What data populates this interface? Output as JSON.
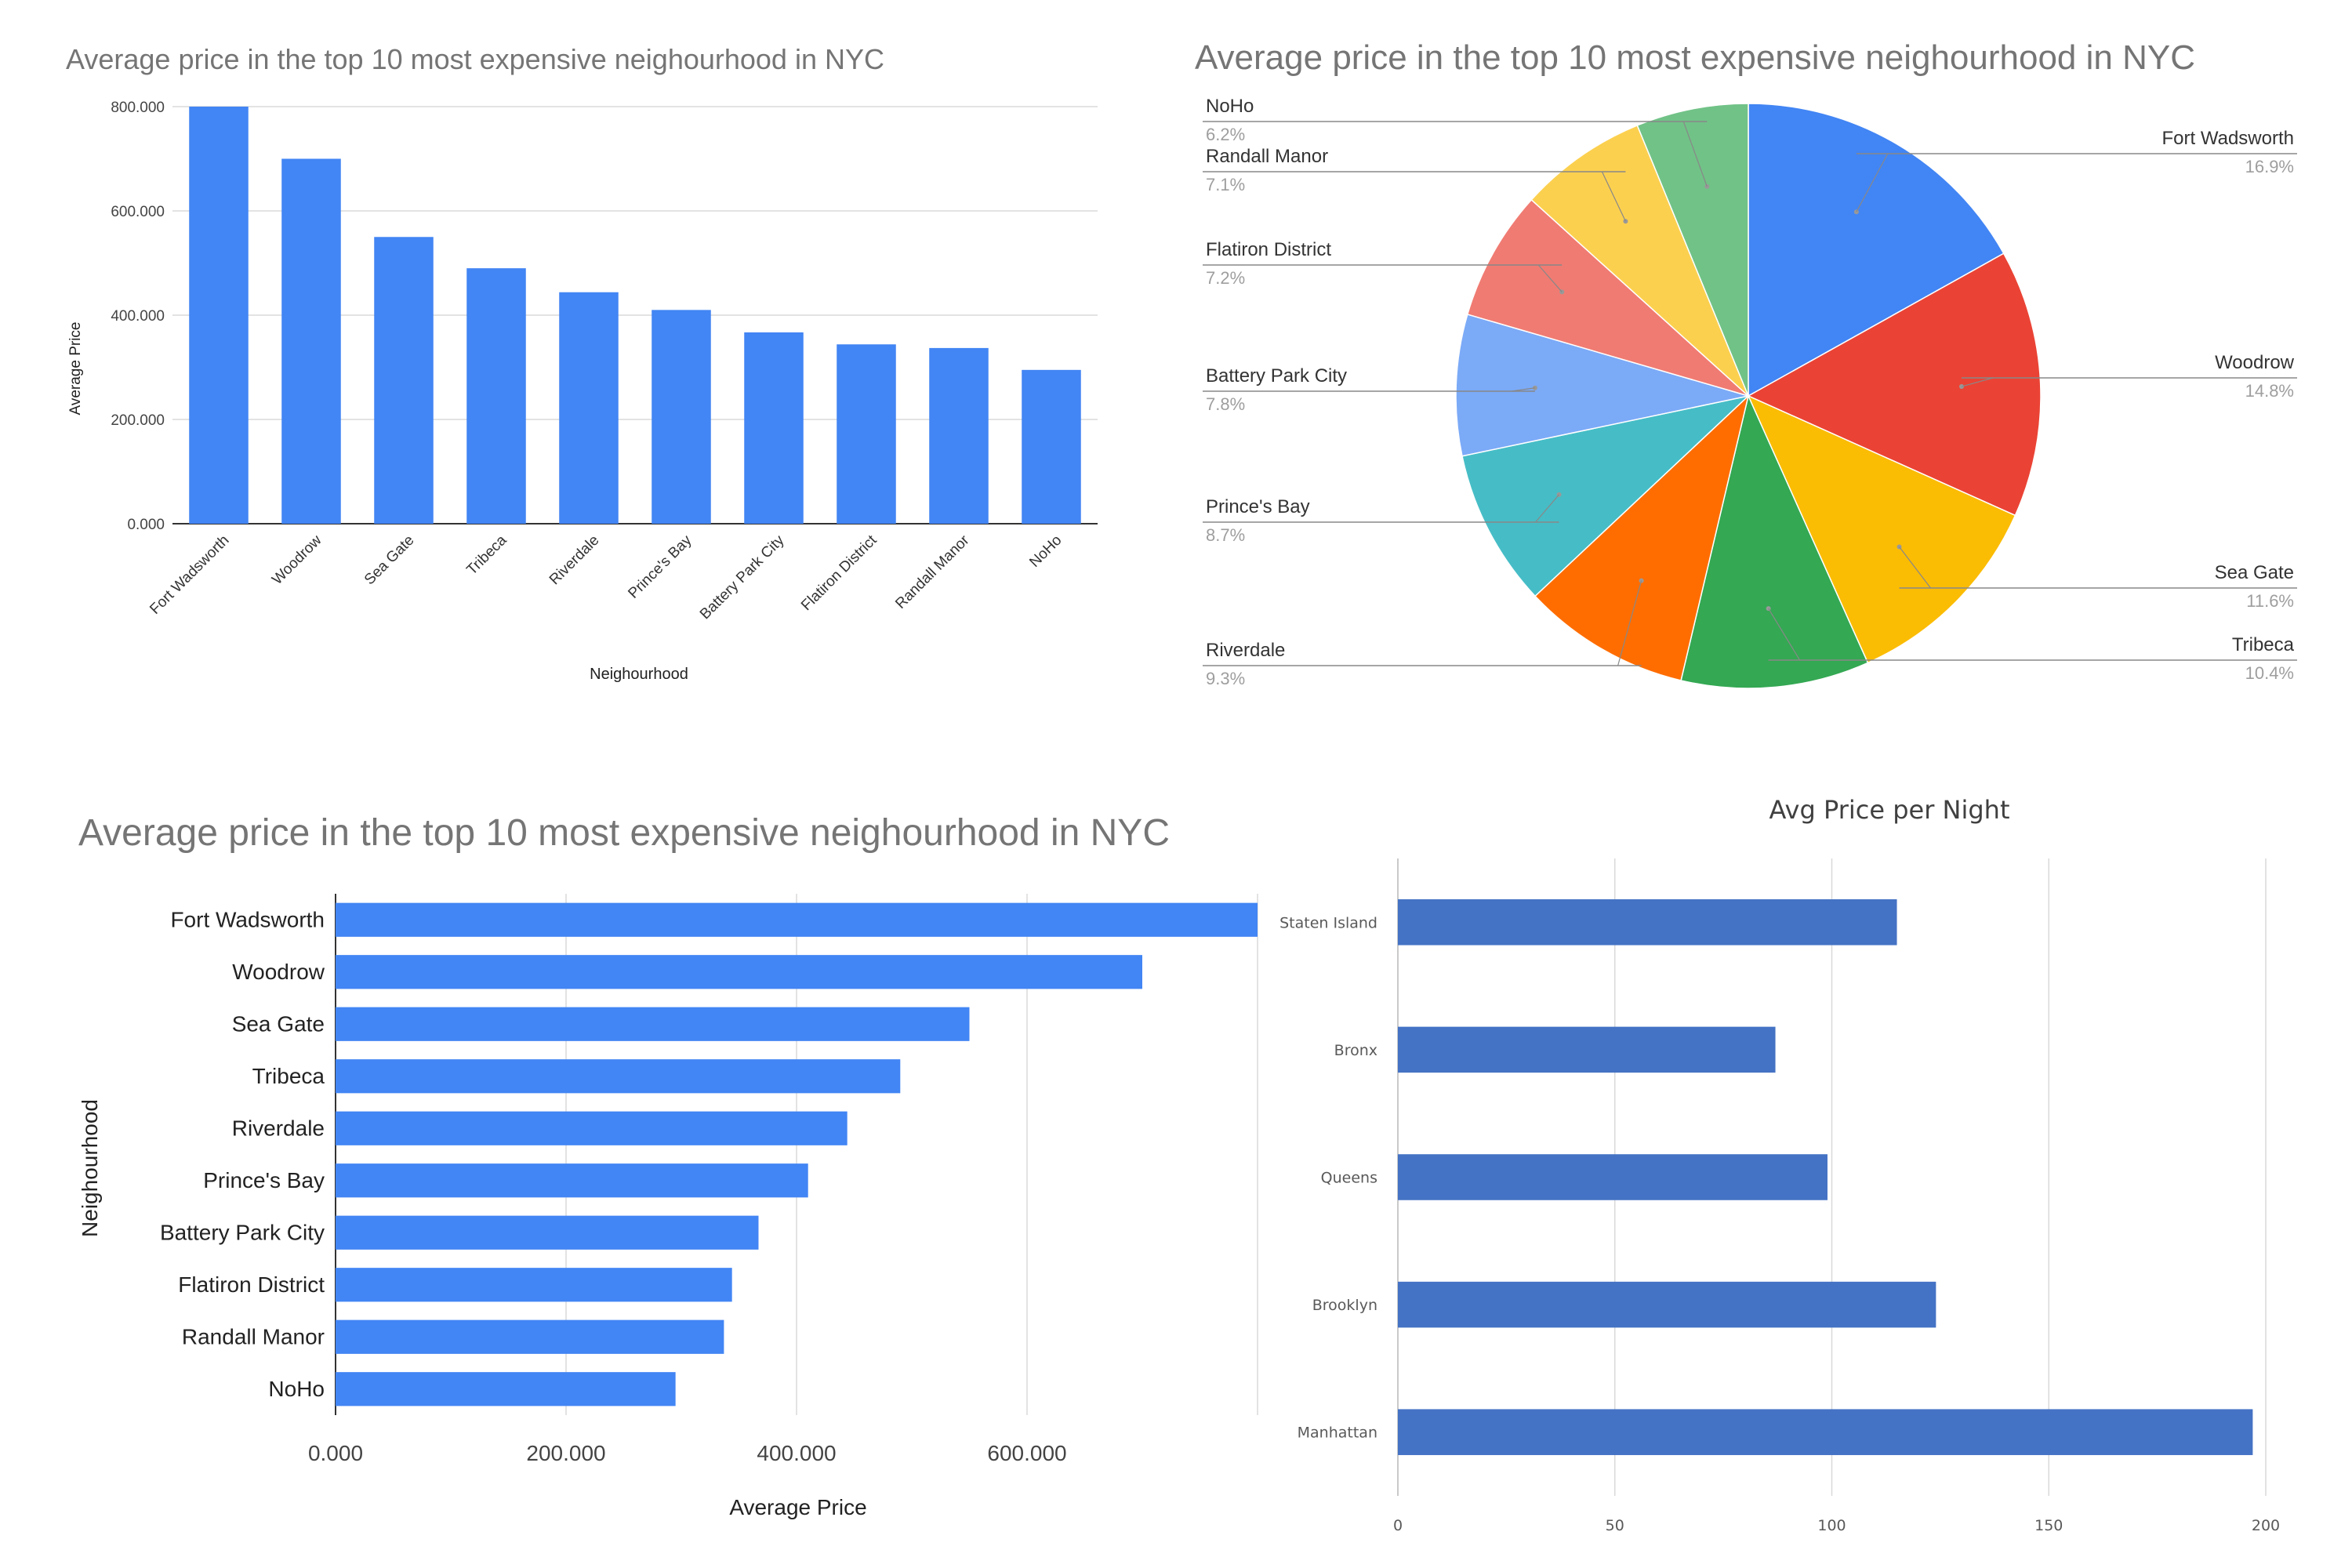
{
  "chart_data": [
    {
      "type": "bar",
      "title": "Average price in the top 10 most expensive neighourhood in NYC",
      "xlabel": "Neighourhood",
      "ylabel": "Average Price",
      "categories": [
        "Fort Wadsworth",
        "Woodrow",
        "Sea Gate",
        "Tribeca",
        "Riverdale",
        "Prince's Bay",
        "Battery Park City",
        "Flatiron District",
        "Randall Manor",
        "NoHo"
      ],
      "values": [
        800,
        700,
        550,
        490,
        444,
        410,
        367,
        344,
        337,
        295
      ],
      "ylim": [
        0,
        800
      ],
      "ytick_labels": [
        "0.000",
        "200.000",
        "400.000",
        "600.000",
        "800.000"
      ],
      "grid": true,
      "color": "#4285F4"
    },
    {
      "type": "pie",
      "title": "Average price in the top 10 most expensive neighourhood in NYC",
      "categories": [
        "Fort Wadsworth",
        "Woodrow",
        "Sea Gate",
        "Tribeca",
        "Riverdale",
        "Prince's Bay",
        "Battery Park City",
        "Flatiron District",
        "Randall Manor",
        "NoHo"
      ],
      "values": [
        16.9,
        14.8,
        11.6,
        10.4,
        9.3,
        8.7,
        7.8,
        7.2,
        7.1,
        6.2
      ],
      "value_labels": [
        "16.9%",
        "14.8%",
        "11.6%",
        "10.4%",
        "9.3%",
        "8.7%",
        "7.8%",
        "7.2%",
        "7.1%",
        "6.2%"
      ],
      "colors": [
        "#4285F4",
        "#EA4335",
        "#FBBC04",
        "#34A853",
        "#FF6D01",
        "#46BDC6",
        "#7BAAF7",
        "#F07B72",
        "#FCD04F",
        "#71C287"
      ]
    },
    {
      "type": "bar",
      "orientation": "horizontal",
      "title": "Average price in the top 10 most expensive neighourhood in NYC",
      "xlabel": "Average Price",
      "ylabel": "Neighourhood",
      "categories": [
        "Fort Wadsworth",
        "Woodrow",
        "Sea Gate",
        "Tribeca",
        "Riverdale",
        "Prince's Bay",
        "Battery Park City",
        "Flatiron District",
        "Randall Manor",
        "NoHo"
      ],
      "values": [
        800,
        700,
        550,
        490,
        444,
        410,
        367,
        344,
        337,
        295
      ],
      "xlim": [
        0,
        800
      ],
      "xtick_labels": [
        "0.000",
        "200.000",
        "400.000",
        "600.000"
      ],
      "grid": true,
      "color": "#4285F4"
    },
    {
      "type": "bar",
      "orientation": "horizontal",
      "title": "Avg Price per Night",
      "xlabel": "",
      "ylabel": "",
      "categories": [
        "Staten Island",
        "Bronx",
        "Queens",
        "Brooklyn",
        "Manhattan"
      ],
      "values": [
        115,
        87,
        99,
        124,
        197
      ],
      "xlim": [
        0,
        200
      ],
      "xtick_labels": [
        "0",
        "50",
        "100",
        "150",
        "200"
      ],
      "grid": true,
      "color": "#4472C4"
    }
  ]
}
